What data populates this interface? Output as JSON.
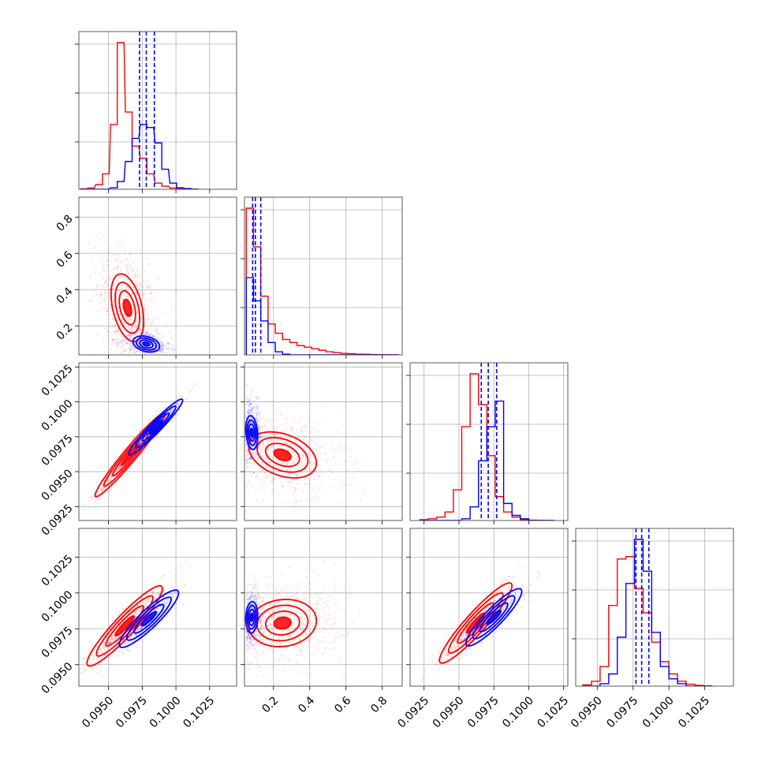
{
  "colors": {
    "series_a": "#ff0000",
    "series_b": "#0000ff",
    "grid": "#b0b0b0"
  },
  "chart_data": {
    "type": "corner",
    "grid": true,
    "series": [
      {
        "name": "",
        "color": "#ff0000"
      },
      {
        "name": "",
        "color": "#0000ff"
      }
    ],
    "parameters": [
      {
        "range": [
          0.0928,
          0.1045
        ],
        "ticks": [
          0.095,
          0.0975,
          0.1,
          0.1025
        ],
        "tick_labels": [
          "0.0950",
          "0.0975",
          "0.1000",
          "0.1025"
        ]
      },
      {
        "range": [
          0.04,
          0.91
        ],
        "ticks": [
          0.2,
          0.4,
          0.6,
          0.8
        ],
        "tick_labels": [
          "0.2",
          "0.4",
          "0.6",
          "0.8"
        ]
      },
      {
        "range": [
          0.0915,
          0.1028
        ],
        "ticks": [
          0.0925,
          0.095,
          0.0975,
          0.1,
          0.1025
        ],
        "tick_labels": [
          "0.0925",
          "0.0950",
          "0.0975",
          "0.1000",
          "0.1025"
        ]
      },
      {
        "range": [
          0.0935,
          0.1045
        ],
        "ticks": [
          0.095,
          0.0975,
          0.1,
          0.1025
        ],
        "tick_labels": [
          "0.0950",
          "0.0975",
          "0.1000",
          "0.1025"
        ]
      }
    ],
    "histograms": [
      {
        "series_a": [
          [
            0.0932,
            0.0937,
            0.0943,
            0.0948,
            0.0954,
            0.0959,
            0.0965,
            0.097,
            0.0976,
            0.0981,
            0.0987,
            0.0992,
            0.0998,
            0.1003,
            0.1009,
            0.1014
          ],
          [
            0.003,
            0.008,
            0.03,
            0.1,
            0.42,
            0.95,
            0.5,
            0.28,
            0.2,
            0.1,
            0.04,
            0.02,
            0.008,
            0.003,
            0.001,
            0.0005
          ]
        ],
        "series_b": [
          [
            0.0932,
            0.0937,
            0.0943,
            0.0948,
            0.0954,
            0.0959,
            0.0965,
            0.097,
            0.0976,
            0.0981,
            0.0987,
            0.0992,
            0.0998,
            0.1003,
            0.1009,
            0.1014
          ],
          [
            0,
            0,
            0,
            0,
            0.01,
            0.05,
            0.18,
            0.33,
            0.42,
            0.4,
            0.3,
            0.13,
            0.04,
            0.01,
            0.005,
            0
          ]
        ],
        "quantiles_b": [
          0.0973,
          0.0978,
          0.0984
        ]
      },
      {
        "series_a": [
          [
            0.07,
            0.11,
            0.15,
            0.19,
            0.23,
            0.27,
            0.31,
            0.35,
            0.39,
            0.43,
            0.47,
            0.51,
            0.55,
            0.59,
            0.63,
            0.67,
            0.71,
            0.75,
            0.79,
            0.83,
            0.87
          ],
          [
            0.95,
            0.7,
            0.38,
            0.2,
            0.14,
            0.1,
            0.08,
            0.06,
            0.05,
            0.04,
            0.03,
            0.02,
            0.015,
            0.01,
            0.008,
            0.005,
            0.004,
            0.002,
            0.001,
            0.001,
            0.0005
          ]
        ],
        "series_b": [
          [
            0.07,
            0.11,
            0.15,
            0.19,
            0.23,
            0.27,
            0.31,
            0.35,
            0.39,
            0.43,
            0.47,
            0.51,
            0.55,
            0.59,
            0.63,
            0.67,
            0.71,
            0.75,
            0.79,
            0.83,
            0.87
          ],
          [
            0.5,
            0.35,
            0.22,
            0.08,
            0.02,
            0.005,
            0,
            0,
            0,
            0,
            0,
            0,
            0,
            0,
            0,
            0,
            0,
            0,
            0,
            0,
            0
          ]
        ],
        "quantiles_b": [
          0.085,
          0.1,
          0.13
        ]
      },
      {
        "series_a": [
          [
            0.0925,
            0.0931,
            0.0937,
            0.0943,
            0.0949,
            0.0955,
            0.0961,
            0.0967,
            0.0973,
            0.0979,
            0.0985,
            0.0991,
            0.0997,
            0.1003,
            0.1009,
            0.1015
          ],
          [
            0.005,
            0.01,
            0.02,
            0.05,
            0.18,
            0.55,
            0.86,
            0.68,
            0.38,
            0.14,
            0.05,
            0.02,
            0.005,
            0.002,
            0.001,
            0.0005
          ]
        ],
        "series_b": [
          [
            0.0925,
            0.0931,
            0.0937,
            0.0943,
            0.0949,
            0.0955,
            0.0961,
            0.0967,
            0.0973,
            0.0979,
            0.0985,
            0.0991,
            0.0997,
            0.1003,
            0.1009,
            0.1015
          ],
          [
            0,
            0,
            0,
            0,
            0,
            0.01,
            0.08,
            0.35,
            0.55,
            0.7,
            0.1,
            0.03,
            0.01,
            0,
            0,
            0
          ]
        ],
        "quantiles_b": [
          0.0966,
          0.0971,
          0.0977
        ]
      },
      {
        "series_a": [
          [
            0.0943,
            0.0949,
            0.0955,
            0.0961,
            0.0967,
            0.0973,
            0.0979,
            0.0985,
            0.0991,
            0.0997,
            0.1003,
            0.1009,
            0.1015,
            0.1021,
            0.1027
          ],
          [
            0.005,
            0.02,
            0.08,
            0.33,
            0.52,
            0.53,
            0.4,
            0.3,
            0.18,
            0.1,
            0.05,
            0.02,
            0.008,
            0.003,
            0.001
          ]
        ],
        "series_b": [
          [
            0.0943,
            0.0949,
            0.0955,
            0.0961,
            0.0967,
            0.0973,
            0.0979,
            0.0985,
            0.0991,
            0.0997,
            0.1003,
            0.1009,
            0.1015,
            0.1021,
            0.1027
          ],
          [
            0,
            0,
            0.01,
            0.05,
            0.2,
            0.42,
            0.6,
            0.47,
            0.22,
            0.08,
            0.03,
            0.01,
            0,
            0,
            0
          ]
        ],
        "quantiles_b": [
          0.0977,
          0.0981,
          0.0986
        ]
      }
    ],
    "scatter_panels": [
      {
        "x": 0,
        "y": 1,
        "series_a": {
          "center": [
            0.0964,
            0.3
          ],
          "sd": [
            0.0011,
            0.17
          ],
          "rho": -0.4
        },
        "series_b": {
          "center": [
            0.0978,
            0.1
          ],
          "sd": [
            0.0009,
            0.04
          ],
          "rho": -0.3
        }
      },
      {
        "x": 0,
        "y": 2,
        "series_a": {
          "center": [
            0.0966,
            0.0962
          ],
          "sd": [
            0.0013,
            0.0015
          ],
          "rho": 0.97
        },
        "series_b": {
          "center": [
            0.0985,
            0.0982
          ],
          "sd": [
            0.001,
            0.001
          ],
          "rho": 0.96
        }
      },
      {
        "x": 1,
        "y": 2,
        "series_a": {
          "center": [
            0.25,
            0.0962
          ],
          "sd": [
            0.17,
            0.0015
          ],
          "rho": -0.35
        },
        "series_b": {
          "center": [
            0.08,
            0.0978
          ],
          "sd": [
            0.03,
            0.0011
          ],
          "rho": -0.2
        }
      },
      {
        "x": 0,
        "y": 3,
        "series_a": {
          "center": [
            0.0962,
            0.0977
          ],
          "sd": [
            0.0014,
            0.0014
          ],
          "rho": 0.93
        },
        "series_b": {
          "center": [
            0.098,
            0.0982
          ],
          "sd": [
            0.0011,
            0.001
          ],
          "rho": 0.9
        }
      },
      {
        "x": 1,
        "y": 3,
        "series_a": {
          "center": [
            0.25,
            0.0979
          ],
          "sd": [
            0.17,
            0.0015
          ],
          "rho": 0.1
        },
        "series_b": {
          "center": [
            0.08,
            0.0983
          ],
          "sd": [
            0.03,
            0.001
          ],
          "rho": 0.1
        }
      },
      {
        "x": 2,
        "y": 3,
        "series_a": {
          "center": [
            0.0962,
            0.0979
          ],
          "sd": [
            0.0013,
            0.0014
          ],
          "rho": 0.93
        },
        "series_b": {
          "center": [
            0.0975,
            0.0983
          ],
          "sd": [
            0.001,
            0.001
          ],
          "rho": 0.9
        }
      }
    ]
  }
}
